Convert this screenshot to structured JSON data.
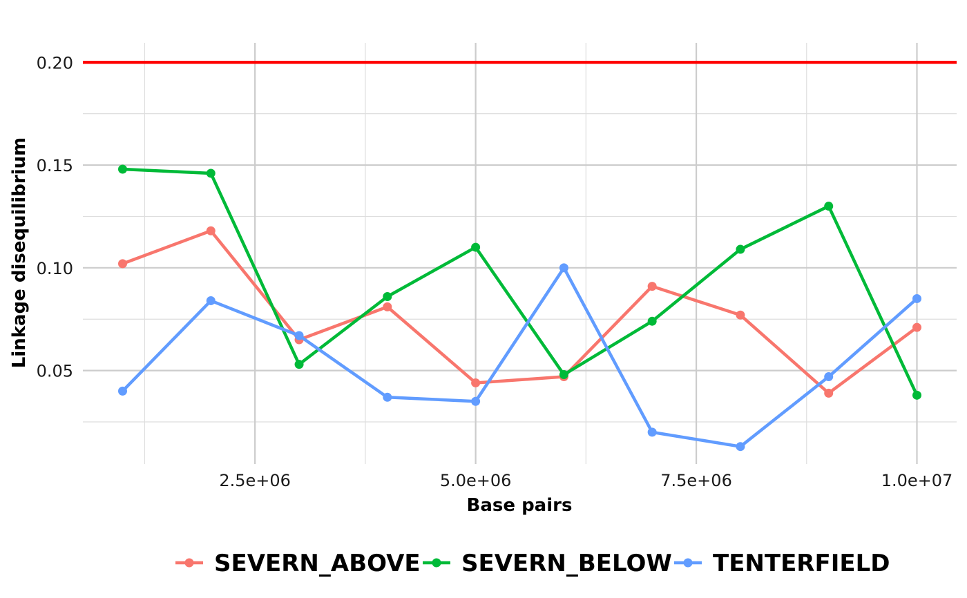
{
  "chart_data": {
    "type": "line",
    "title": "",
    "xlabel": "Base pairs",
    "ylabel": "Linkage disequilibrium",
    "xlim": [
      550000,
      10450000
    ],
    "ylim": [
      0.0045,
      0.2095
    ],
    "x_major_ticks": [
      2500000,
      5000000,
      7500000,
      10000000
    ],
    "x_tick_labels": [
      "2.5e+06",
      "5.0e+06",
      "7.5e+06",
      "1.0e+07"
    ],
    "x_minor_ticks": [
      1250000,
      3750000,
      6250000,
      8750000
    ],
    "y_major_ticks": [
      0.05,
      0.1,
      0.15,
      0.2
    ],
    "y_tick_labels": [
      "0.05",
      "0.10",
      "0.15",
      "0.20"
    ],
    "y_minor_ticks": [
      0.025,
      0.075,
      0.125,
      0.175
    ],
    "grid": true,
    "legend_position": "bottom",
    "reference_line": {
      "y": 0.2,
      "color": "#ff0000"
    },
    "x": [
      1000000,
      2000000,
      3000000,
      4000000,
      5000000,
      6000000,
      7000000,
      8000000,
      9000000,
      10000000
    ],
    "series": [
      {
        "name": "SEVERN_ABOVE",
        "color": "#F8766D",
        "values": [
          0.102,
          0.118,
          0.065,
          0.081,
          0.044,
          0.047,
          0.091,
          0.077,
          0.039,
          0.071
        ]
      },
      {
        "name": "SEVERN_BELOW",
        "color": "#00BA38",
        "values": [
          0.148,
          0.146,
          0.053,
          0.086,
          0.11,
          0.048,
          0.074,
          0.109,
          0.13,
          0.038
        ]
      },
      {
        "name": "TENTERFIELD",
        "color": "#619CFF",
        "values": [
          0.04,
          0.084,
          0.067,
          0.037,
          0.035,
          0.1,
          0.02,
          0.013,
          0.047,
          0.085
        ]
      }
    ]
  }
}
